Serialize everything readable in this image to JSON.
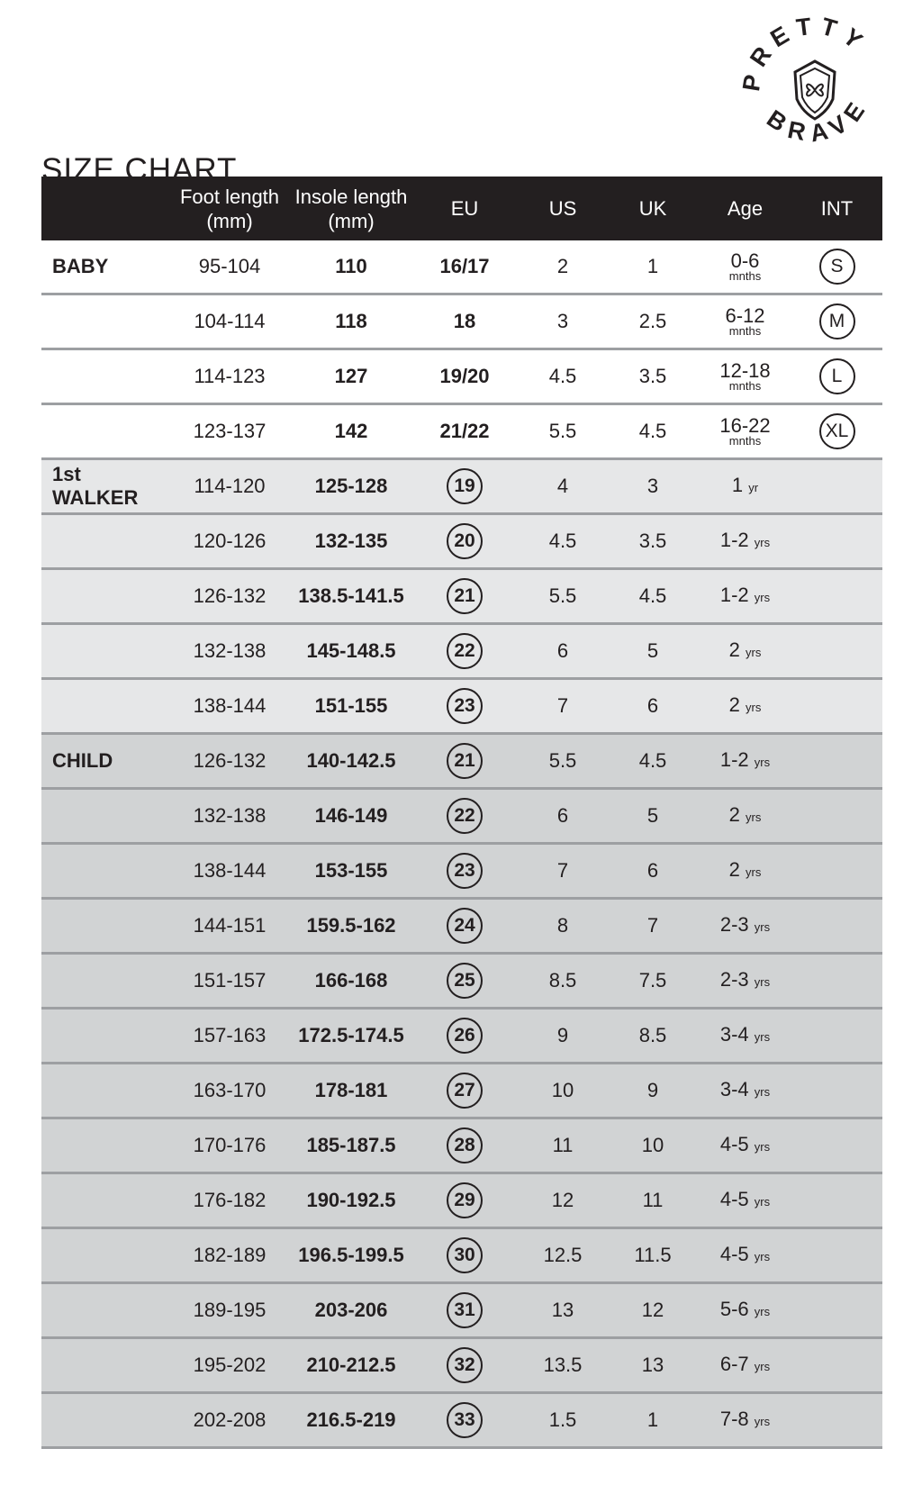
{
  "title": "SIZE CHART",
  "logo": {
    "top_text": "PRETTY",
    "bottom_text": "BRAVE"
  },
  "headers": [
    "",
    "Foot length (mm)",
    "Insole length (mm)",
    "EU",
    "US",
    "UK",
    "Age",
    "INT"
  ],
  "colors": {
    "header_bg": "#231f20",
    "baby_bg": "#ffffff",
    "walker_bg": "#e6e7e8",
    "child_bg": "#d1d3d4",
    "divider": "#9d9fa2"
  },
  "rows": [
    {
      "group": "baby",
      "label": "BABY",
      "foot": "95-104",
      "insole": "110",
      "eu": "16/17",
      "eu_circled": false,
      "us": "2",
      "uk": "1",
      "age": "0-6",
      "age_unit": "mnths",
      "int": "S"
    },
    {
      "group": "baby",
      "label": "",
      "foot": "104-114",
      "insole": "118",
      "eu": "18",
      "eu_circled": false,
      "us": "3",
      "uk": "2.5",
      "age": "6-12",
      "age_unit": "mnths",
      "int": "M"
    },
    {
      "group": "baby",
      "label": "",
      "foot": "114-123",
      "insole": "127",
      "eu": "19/20",
      "eu_circled": false,
      "us": "4.5",
      "uk": "3.5",
      "age": "12-18",
      "age_unit": "mnths",
      "int": "L"
    },
    {
      "group": "baby",
      "label": "",
      "foot": "123-137",
      "insole": "142",
      "eu": "21/22",
      "eu_circled": false,
      "us": "5.5",
      "uk": "4.5",
      "age": "16-22",
      "age_unit": "mnths",
      "int": "XL"
    },
    {
      "group": "walker",
      "label": "1st WALKER",
      "foot": "114-120",
      "insole": "125-128",
      "eu": "19",
      "eu_circled": true,
      "us": "4",
      "uk": "3",
      "age": "1",
      "age_unit": "yr",
      "int": ""
    },
    {
      "group": "walker",
      "label": "",
      "foot": "120-126",
      "insole": "132-135",
      "eu": "20",
      "eu_circled": true,
      "us": "4.5",
      "uk": "3.5",
      "age": "1-2",
      "age_unit": "yrs",
      "int": ""
    },
    {
      "group": "walker",
      "label": "",
      "foot": "126-132",
      "insole": "138.5-141.5",
      "eu": "21",
      "eu_circled": true,
      "us": "5.5",
      "uk": "4.5",
      "age": "1-2",
      "age_unit": "yrs",
      "int": ""
    },
    {
      "group": "walker",
      "label": "",
      "foot": "132-138",
      "insole": "145-148.5",
      "eu": "22",
      "eu_circled": true,
      "us": "6",
      "uk": "5",
      "age": "2",
      "age_unit": "yrs",
      "int": ""
    },
    {
      "group": "walker",
      "label": "",
      "foot": "138-144",
      "insole": "151-155",
      "eu": "23",
      "eu_circled": true,
      "us": "7",
      "uk": "6",
      "age": "2",
      "age_unit": "yrs",
      "int": ""
    },
    {
      "group": "child",
      "label": "CHILD",
      "foot": "126-132",
      "insole": "140-142.5",
      "eu": "21",
      "eu_circled": true,
      "us": "5.5",
      "uk": "4.5",
      "age": "1-2",
      "age_unit": "yrs",
      "int": ""
    },
    {
      "group": "child",
      "label": "",
      "foot": "132-138",
      "insole": "146-149",
      "eu": "22",
      "eu_circled": true,
      "us": "6",
      "uk": "5",
      "age": "2",
      "age_unit": "yrs",
      "int": ""
    },
    {
      "group": "child",
      "label": "",
      "foot": "138-144",
      "insole": "153-155",
      "eu": "23",
      "eu_circled": true,
      "us": "7",
      "uk": "6",
      "age": "2",
      "age_unit": "yrs",
      "int": ""
    },
    {
      "group": "child",
      "label": "",
      "foot": "144-151",
      "insole": "159.5-162",
      "eu": "24",
      "eu_circled": true,
      "us": "8",
      "uk": "7",
      "age": "2-3",
      "age_unit": "yrs",
      "int": ""
    },
    {
      "group": "child",
      "label": "",
      "foot": "151-157",
      "insole": "166-168",
      "eu": "25",
      "eu_circled": true,
      "us": "8.5",
      "uk": "7.5",
      "age": "2-3",
      "age_unit": "yrs",
      "int": ""
    },
    {
      "group": "child",
      "label": "",
      "foot": "157-163",
      "insole": "172.5-174.5",
      "eu": "26",
      "eu_circled": true,
      "us": "9",
      "uk": "8.5",
      "age": "3-4",
      "age_unit": "yrs",
      "int": ""
    },
    {
      "group": "child",
      "label": "",
      "foot": "163-170",
      "insole": "178-181",
      "eu": "27",
      "eu_circled": true,
      "us": "10",
      "uk": "9",
      "age": "3-4",
      "age_unit": "yrs",
      "int": ""
    },
    {
      "group": "child",
      "label": "",
      "foot": "170-176",
      "insole": "185-187.5",
      "eu": "28",
      "eu_circled": true,
      "us": "11",
      "uk": "10",
      "age": "4-5",
      "age_unit": "yrs",
      "int": ""
    },
    {
      "group": "child",
      "label": "",
      "foot": "176-182",
      "insole": "190-192.5",
      "eu": "29",
      "eu_circled": true,
      "us": "12",
      "uk": "11",
      "age": "4-5",
      "age_unit": "yrs",
      "int": ""
    },
    {
      "group": "child",
      "label": "",
      "foot": "182-189",
      "insole": "196.5-199.5",
      "eu": "30",
      "eu_circled": true,
      "us": "12.5",
      "uk": "11.5",
      "age": "4-5",
      "age_unit": "yrs",
      "int": ""
    },
    {
      "group": "child",
      "label": "",
      "foot": "189-195",
      "insole": "203-206",
      "eu": "31",
      "eu_circled": true,
      "us": "13",
      "uk": "12",
      "age": "5-6",
      "age_unit": "yrs",
      "int": ""
    },
    {
      "group": "child",
      "label": "",
      "foot": "195-202",
      "insole": "210-212.5",
      "eu": "32",
      "eu_circled": true,
      "us": "13.5",
      "uk": "13",
      "age": "6-7",
      "age_unit": "yrs",
      "int": ""
    },
    {
      "group": "child",
      "label": "",
      "foot": "202-208",
      "insole": "216.5-219",
      "eu": "33",
      "eu_circled": true,
      "us": "1.5",
      "uk": "1",
      "age": "7-8",
      "age_unit": "yrs",
      "int": ""
    }
  ]
}
